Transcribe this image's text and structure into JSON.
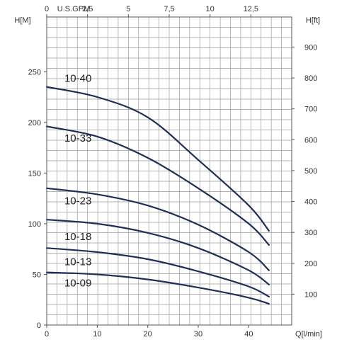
{
  "chart_data": {
    "type": "line",
    "title": "",
    "y_left_label": "H[M]",
    "y_right_label": "H[ft]",
    "x_bottom_label": "Q[l/min]",
    "x_top_label": "U.S.GPM",
    "xlim": [
      0,
      48.5
    ],
    "ylim": [
      0,
      304
    ],
    "x_bottom_ticks": [
      0,
      10,
      20,
      30,
      40
    ],
    "x_top_ticks": [
      "0",
      "2,5",
      "5",
      "7,5",
      "10",
      "12,5"
    ],
    "y_left_ticks": [
      0,
      50,
      100,
      150,
      200,
      250
    ],
    "y_right_ticks": [
      100,
      200,
      300,
      400,
      500,
      600,
      700,
      800,
      900
    ],
    "grid": true,
    "line_color": "#1f2f57",
    "series": [
      {
        "name": "10-40",
        "label_at": [
          3.5,
          240
        ],
        "x": [
          0,
          10,
          20,
          30,
          40,
          44
        ],
        "y": [
          235,
          225,
          205,
          163,
          118,
          93
        ]
      },
      {
        "name": "10-33",
        "label_at": [
          3.5,
          181
        ],
        "x": [
          0,
          10,
          20,
          30,
          40,
          44
        ],
        "y": [
          196,
          186,
          165,
          135,
          100,
          79
        ]
      },
      {
        "name": "10-23",
        "label_at": [
          3.5,
          119
        ],
        "x": [
          0,
          10,
          20,
          30,
          40,
          44
        ],
        "y": [
          135,
          129,
          118,
          99,
          72,
          54
        ]
      },
      {
        "name": "10-18",
        "label_at": [
          3.5,
          84
        ],
        "x": [
          0,
          10,
          20,
          30,
          40,
          44
        ],
        "y": [
          104,
          100,
          91,
          76,
          54,
          40
        ]
      },
      {
        "name": "10-13",
        "label_at": [
          3.5,
          59
        ],
        "x": [
          0,
          10,
          20,
          30,
          40,
          44
        ],
        "y": [
          76,
          72,
          65,
          53,
          38,
          28
        ]
      },
      {
        "name": "10-09",
        "label_at": [
          3.5,
          38
        ],
        "x": [
          0,
          10,
          20,
          30,
          40,
          44
        ],
        "y": [
          52,
          50,
          45,
          37,
          27,
          21
        ]
      }
    ]
  }
}
